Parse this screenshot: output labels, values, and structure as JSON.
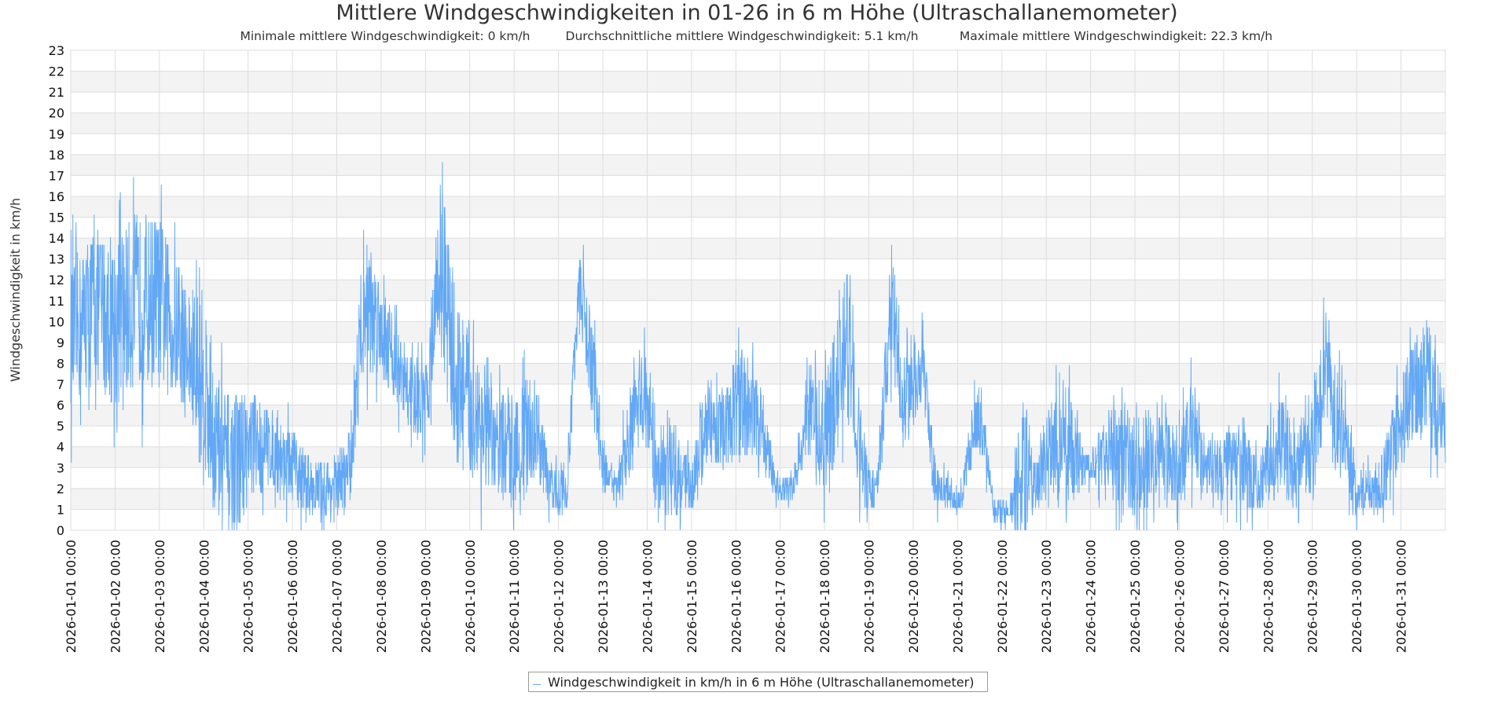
{
  "chart_data": {
    "type": "line",
    "title": "Mittlere Windgeschwindigkeiten in 01-26 in 6 m Höhe (Ultraschallanemometer)",
    "subtitle": {
      "min": "Minimale mittlere Windgeschwindigkeit: 0 km/h",
      "avg": "Durchschnittliche mittlere Windgeschwindigkeit: 5.1 km/h",
      "max": "Maximale mittlere Windgeschwindigkeit: 22.3 km/h"
    },
    "xlabel": "",
    "ylabel": "Windgeschwindigkeit in km/h",
    "ylim": [
      0,
      23
    ],
    "yticks": [
      0,
      1,
      2,
      3,
      4,
      5,
      6,
      7,
      8,
      9,
      10,
      11,
      12,
      13,
      14,
      15,
      16,
      17,
      18,
      19,
      20,
      21,
      22,
      23
    ],
    "xlim_days": [
      0,
      31
    ],
    "xtick_labels": [
      "2026-01-01 00:00",
      "2026-01-02 00:00",
      "2026-01-03 00:00",
      "2026-01-04 00:00",
      "2026-01-05 00:00",
      "2026-01-06 00:00",
      "2026-01-07 00:00",
      "2026-01-08 00:00",
      "2026-01-09 00:00",
      "2026-01-10 00:00",
      "2026-01-11 00:00",
      "2026-01-12 00:00",
      "2026-01-13 00:00",
      "2026-01-14 00:00",
      "2026-01-15 00:00",
      "2026-01-16 00:00",
      "2026-01-17 00:00",
      "2026-01-18 00:00",
      "2026-01-19 00:00",
      "2026-01-20 00:00",
      "2026-01-21 00:00",
      "2026-01-22 00:00",
      "2026-01-23 00:00",
      "2026-01-24 00:00",
      "2026-01-25 00:00",
      "2026-01-26 00:00",
      "2026-01-27 00:00",
      "2026-01-28 00:00",
      "2026-01-29 00:00",
      "2026-01-30 00:00",
      "2026-01-31 00:00"
    ],
    "grid": true,
    "legend_position": "bottom-center",
    "series": [
      {
        "name": "Windgeschwindigkeit in km/h in 6 m Höhe (Ultraschallanemometer)",
        "color": "#63a8f5",
        "envelope_note_fields": [
          "day_offset",
          "typical",
          "peak"
        ],
        "envelope": [
          [
            0,
            9,
            15
          ],
          [
            0.5,
            11,
            17
          ],
          [
            1,
            10,
            17
          ],
          [
            1.5,
            11,
            18
          ],
          [
            2,
            11,
            18
          ],
          [
            2.5,
            9,
            14
          ],
          [
            3,
            7,
            15
          ],
          [
            3.3,
            4,
            10
          ],
          [
            3.6,
            3,
            9
          ],
          [
            4,
            4,
            9
          ],
          [
            4.5,
            4,
            7
          ],
          [
            5,
            3,
            6
          ],
          [
            5.5,
            2,
            4
          ],
          [
            6,
            2,
            5
          ],
          [
            6.3,
            3,
            6
          ],
          [
            6.6,
            11,
            17
          ],
          [
            7,
            10,
            14
          ],
          [
            7.5,
            7,
            10
          ],
          [
            8,
            6,
            9
          ],
          [
            8.33,
            13,
            20
          ],
          [
            8.7,
            7,
            14
          ],
          [
            9,
            6,
            12
          ],
          [
            9.5,
            4,
            8
          ],
          [
            10,
            4,
            9
          ],
          [
            10.5,
            5,
            9
          ],
          [
            10.8,
            2,
            4
          ],
          [
            11.2,
            2,
            4
          ],
          [
            11.45,
            12,
            15
          ],
          [
            11.8,
            7,
            11
          ],
          [
            12,
            3,
            5
          ],
          [
            12.3,
            2,
            3
          ],
          [
            12.6,
            4,
            8
          ],
          [
            12.9,
            7,
            11
          ],
          [
            13.2,
            3,
            6
          ],
          [
            13.6,
            3,
            7
          ],
          [
            14,
            2,
            4
          ],
          [
            14.3,
            5,
            8
          ],
          [
            14.8,
            5,
            8
          ],
          [
            15,
            6,
            11
          ],
          [
            15.3,
            6,
            10
          ],
          [
            15.6,
            5,
            8
          ],
          [
            15.9,
            2,
            3
          ],
          [
            16.3,
            2,
            3
          ],
          [
            16.6,
            6,
            10
          ],
          [
            17,
            4,
            9
          ],
          [
            17.5,
            9,
            15
          ],
          [
            17.8,
            4,
            8
          ],
          [
            18,
            2,
            4
          ],
          [
            18.2,
            2,
            4
          ],
          [
            18.5,
            11,
            16
          ],
          [
            18.8,
            6,
            10
          ],
          [
            19,
            7,
            10
          ],
          [
            19.2,
            8,
            11
          ],
          [
            19.5,
            2,
            4
          ],
          [
            19.8,
            2,
            3
          ],
          [
            20,
            1,
            2
          ],
          [
            20.5,
            6,
            9
          ],
          [
            20.8,
            1,
            2
          ],
          [
            21.2,
            1,
            2
          ],
          [
            21.5,
            3,
            9
          ],
          [
            21.8,
            2,
            4
          ],
          [
            22,
            4,
            7
          ],
          [
            22.5,
            4,
            9
          ],
          [
            22.8,
            3,
            5
          ],
          [
            23,
            3,
            4
          ],
          [
            23.5,
            4,
            8
          ],
          [
            24,
            3,
            7
          ],
          [
            24.5,
            4,
            8
          ],
          [
            25,
            3,
            6
          ],
          [
            25.3,
            5,
            9
          ],
          [
            25.6,
            3,
            5
          ],
          [
            26,
            3,
            6
          ],
          [
            26.5,
            3,
            6
          ],
          [
            26.8,
            2,
            4
          ],
          [
            27,
            3,
            6
          ],
          [
            27.3,
            4,
            8
          ],
          [
            27.6,
            3,
            6
          ],
          [
            28,
            4,
            8
          ],
          [
            28.3,
            8,
            12
          ],
          [
            28.6,
            5,
            9
          ],
          [
            29,
            2,
            4
          ],
          [
            29.5,
            2,
            4
          ],
          [
            30,
            5,
            9
          ],
          [
            30.3,
            7,
            11
          ],
          [
            30.6,
            7,
            12
          ],
          [
            31,
            5,
            8
          ]
        ],
        "min": 0,
        "mean": 5.1,
        "max": 22.3
      }
    ],
    "colors": {
      "band": "#f3f3f3",
      "grid": "#dddddd"
    }
  }
}
